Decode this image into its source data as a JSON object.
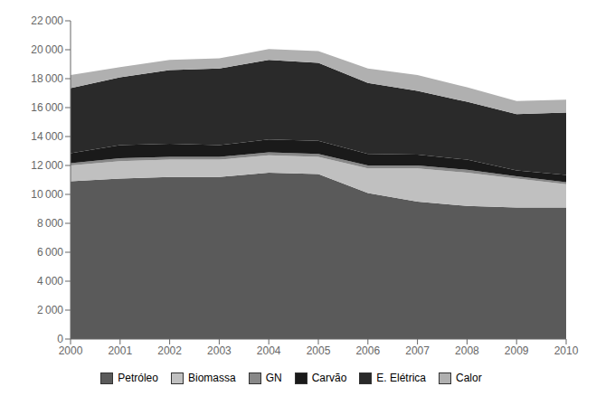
{
  "chart_data": {
    "type": "area",
    "stacked": true,
    "x": [
      2000,
      2001,
      2002,
      2003,
      2004,
      2005,
      2006,
      2007,
      2008,
      2009,
      2010
    ],
    "xlim": [
      2000,
      2010
    ],
    "xticks": [
      2000,
      2001,
      2002,
      2003,
      2004,
      2005,
      2006,
      2007,
      2008,
      2009,
      2010
    ],
    "ylim": [
      0,
      22000
    ],
    "yticks": [
      0,
      {
        "value": 2000,
        "label": "2 000"
      },
      {
        "value": 4000,
        "label": "4 000"
      },
      {
        "value": 6000,
        "label": "6 000"
      },
      {
        "value": 8000,
        "label": "8 000"
      },
      {
        "value": 10000,
        "label": "10 000"
      },
      {
        "value": 12000,
        "label": "12 000"
      },
      {
        "value": 14000,
        "label": "14 000"
      },
      {
        "value": 16000,
        "label": "16 000"
      },
      {
        "value": 18000,
        "label": "18 000"
      },
      {
        "value": 20000,
        "label": "20 000"
      },
      {
        "value": 22000,
        "label": "22 000"
      }
    ],
    "grid": false,
    "legend": "bottom",
    "series": [
      {
        "name": "Petróleo",
        "color": "#5a5a5a",
        "values": [
          10900,
          11100,
          11200,
          11200,
          11500,
          11400,
          10100,
          9500,
          9200,
          9100,
          9100
        ]
      },
      {
        "name": "Biomassa",
        "color": "#c0c0c0",
        "values": [
          1100,
          1200,
          1200,
          1200,
          1200,
          1200,
          1700,
          2300,
          2300,
          2000,
          1600
        ]
      },
      {
        "name": "GN",
        "color": "#888888",
        "values": [
          150,
          200,
          200,
          200,
          200,
          200,
          200,
          200,
          200,
          150,
          150
        ]
      },
      {
        "name": "Carvão",
        "color": "#1a1a1a",
        "values": [
          700,
          900,
          900,
          800,
          900,
          900,
          800,
          750,
          700,
          400,
          500
        ]
      },
      {
        "name": "E. Elétrica",
        "color": "#2a2a2a",
        "values": [
          4500,
          4700,
          5100,
          5300,
          5500,
          5400,
          4900,
          4400,
          4000,
          3900,
          4300
        ]
      },
      {
        "name": "Calor",
        "color": "#b0b0b0",
        "values": [
          900,
          700,
          700,
          700,
          750,
          800,
          1000,
          1100,
          1000,
          900,
          900
        ]
      }
    ]
  }
}
